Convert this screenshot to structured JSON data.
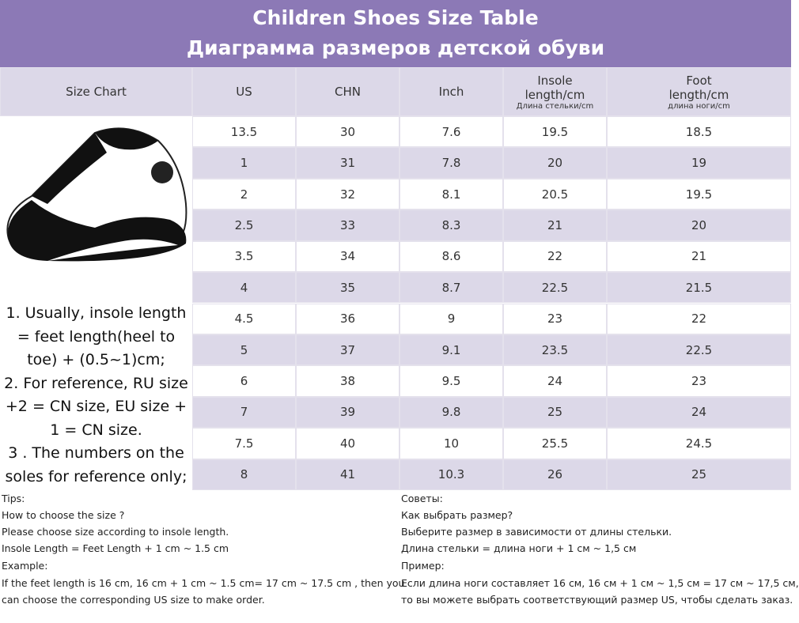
{
  "header": {
    "title": "Children Shoes Size Table",
    "subtitle": "Диаграмма размеров детской обуви"
  },
  "table": {
    "columns": [
      {
        "label": "Size Chart"
      },
      {
        "label": "US"
      },
      {
        "label": "CHN"
      },
      {
        "label": "Inch"
      },
      {
        "label": "Insole length/cm",
        "sublabel": "Длина стельки/cm"
      },
      {
        "label": "Foot length/cm",
        "sublabel": "длина ноги/cm"
      }
    ],
    "rows": [
      [
        "13.5",
        "30",
        "7.6",
        "19.5",
        "18.5"
      ],
      [
        "1",
        "31",
        "7.8",
        "20",
        "19"
      ],
      [
        "2",
        "32",
        "8.1",
        "20.5",
        "19.5"
      ],
      [
        "2.5",
        "33",
        "8.3",
        "21",
        "20"
      ],
      [
        "3.5",
        "34",
        "8.6",
        "22",
        "21"
      ],
      [
        "4",
        "35",
        "8.7",
        "22.5",
        "21.5"
      ],
      [
        "4.5",
        "36",
        "9",
        "23",
        "22"
      ],
      [
        "5",
        "37",
        "9.1",
        "23.5",
        "22.5"
      ],
      [
        "6",
        "38",
        "9.5",
        "24",
        "23"
      ],
      [
        "7",
        "39",
        "9.8",
        "25",
        "24"
      ],
      [
        "7.5",
        "40",
        "10",
        "25.5",
        "24.5"
      ],
      [
        "8",
        "41",
        "10.3",
        "26",
        "25"
      ]
    ]
  },
  "notes": [
    "1. Usually, insole length",
    "= feet length(heel to",
    "toe) + (0.5~1)cm;",
    "2. For reference, RU size",
    "+2 = CN size, EU size +",
    "1 = CN size.",
    "3 . The numbers on the",
    "soles for reference only;"
  ],
  "tips": {
    "english": [
      "Tips:",
      "How to choose the size ?",
      "Please choose size according to insole length.",
      "Insole Length = Feet Length + 1 cm ~ 1.5 cm",
      "Example:",
      "If the feet length is 16 cm, 16 cm + 1 cm ~ 1.5 cm= 17 cm ~ 17.5 cm , then you",
      "can choose the corresponding US size to make order."
    ],
    "russian": [
      "Советы:",
      "Как выбрать размер?",
      "Выберите размер в зависимости от длины стельки.",
      "Длина стельки = длина ноги + 1 см ~ 1,5 см",
      "Пример:",
      "Если длина ноги составляет 16 см, 16 см + 1 см ~ 1,5 см = 17 см ~ 17,5 см,",
      "то вы можете выбрать соответствующий размер US, чтобы сделать заказ."
    ]
  }
}
